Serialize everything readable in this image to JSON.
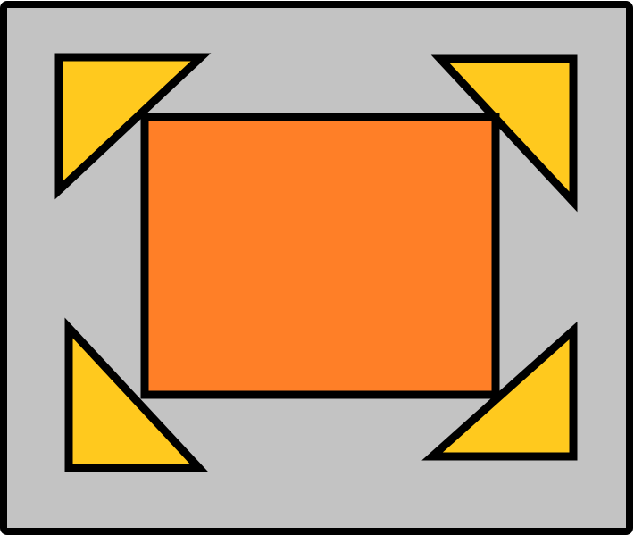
{
  "colors": {
    "frame_fill": "#c3c3c3",
    "outline": "#000000",
    "center_fill": "#ff7f27",
    "corner_fill": "#ffc91e"
  },
  "shapes": {
    "frame": "rounded-rectangle",
    "center": "rectangle",
    "corners": [
      "triangle-top-left",
      "triangle-top-right",
      "triangle-bottom-left",
      "triangle-bottom-right"
    ]
  }
}
